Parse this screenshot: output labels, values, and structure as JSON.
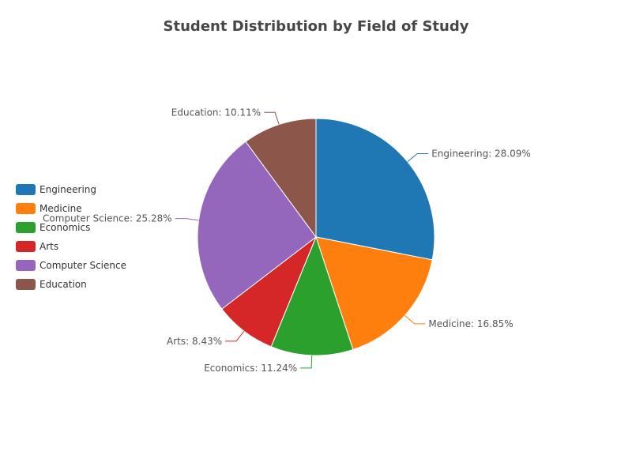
{
  "chart_data": {
    "type": "pie",
    "title": "Student Distribution by Field of Study",
    "categories": [
      "Engineering",
      "Medicine",
      "Economics",
      "Arts",
      "Computer Science",
      "Education"
    ],
    "values": [
      28.09,
      16.85,
      11.24,
      8.43,
      25.28,
      10.11
    ],
    "labels": [
      "Engineering: 28.09%",
      "Medicine: 16.85%",
      "Economics: 11.24%",
      "Arts: 8.43%",
      "Computer Science: 25.28%",
      "Education: 10.11%"
    ],
    "colors": [
      "#1f77b4",
      "#ff7f0e",
      "#2ca02c",
      "#d62728",
      "#9467bd",
      "#8c564b"
    ],
    "legend_position": "left"
  }
}
